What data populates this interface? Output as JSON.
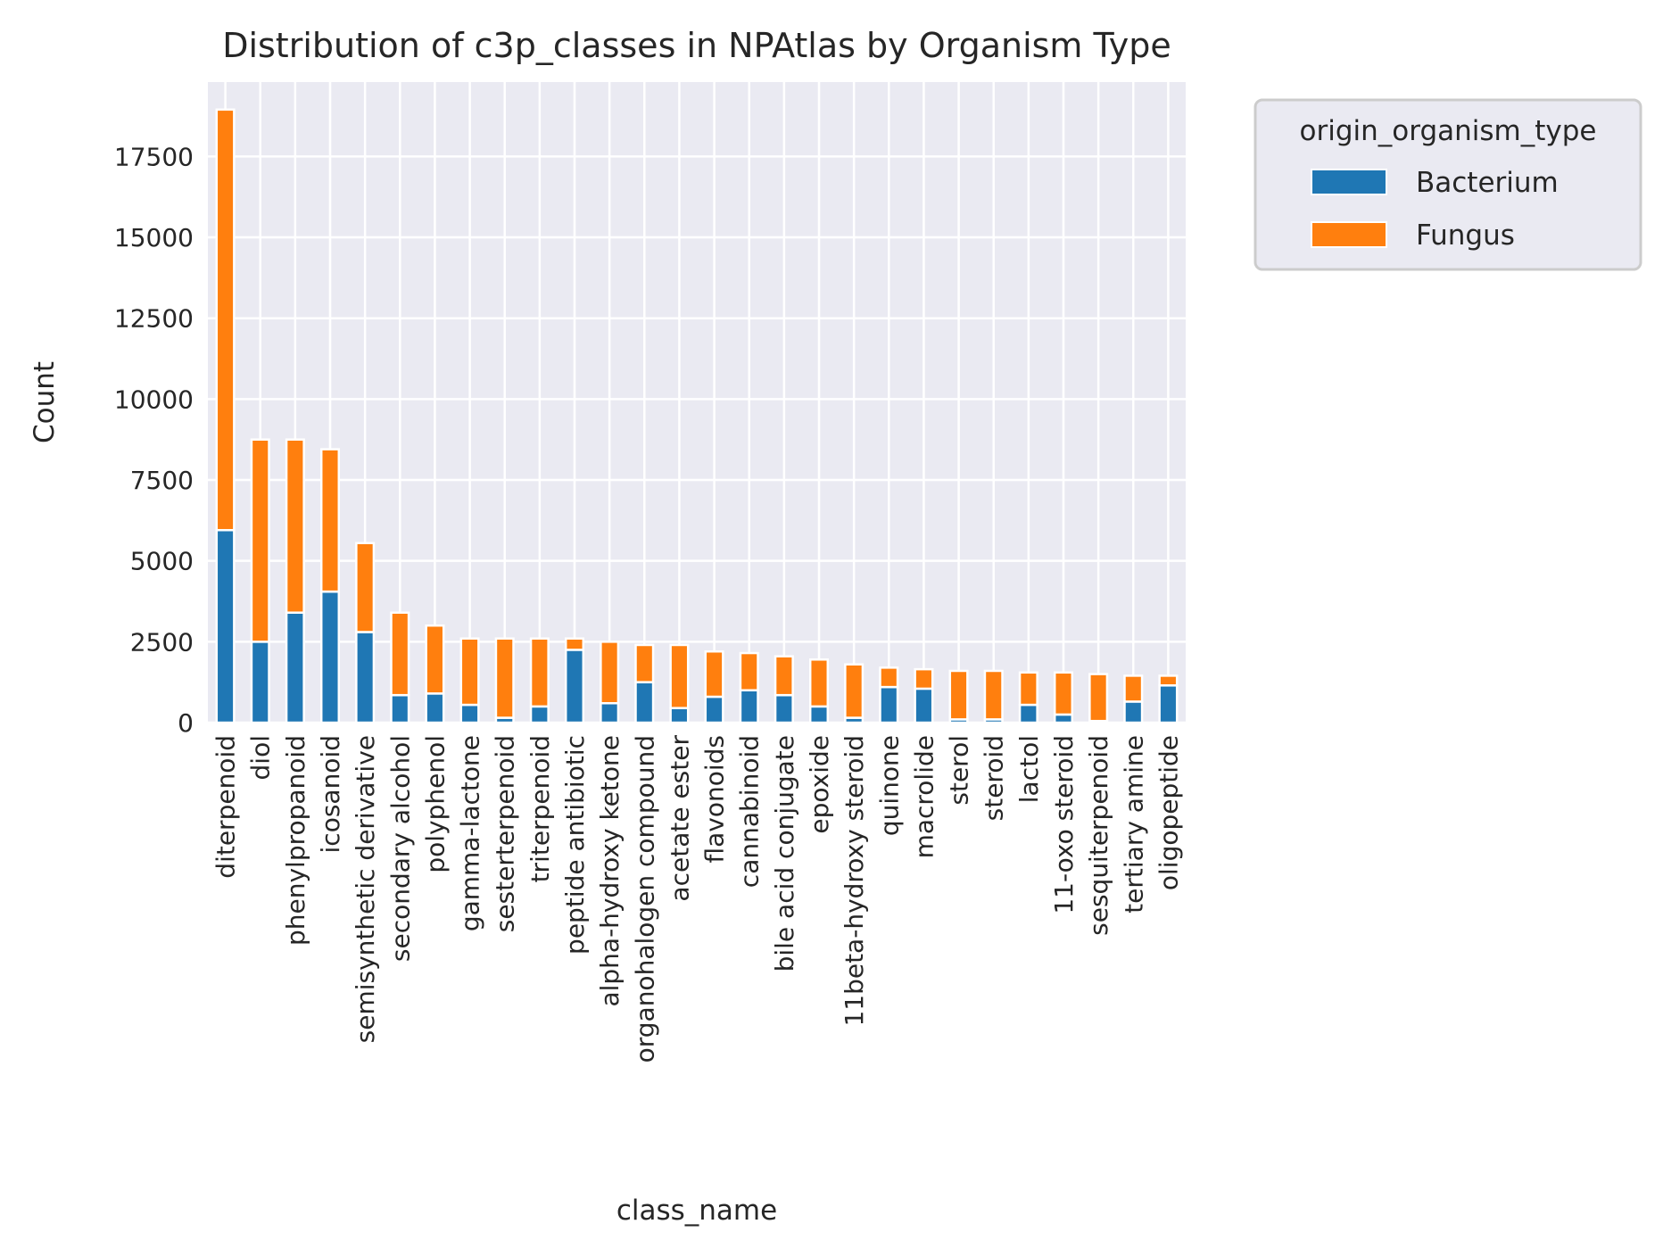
{
  "chart_data": {
    "type": "bar",
    "stacked": true,
    "title": "Distribution of c3p_classes in NPAtlas by Organism Type",
    "xlabel": "class_name",
    "ylabel": "Count",
    "ylim": [
      0,
      19800
    ],
    "yticks": [
      0,
      2500,
      5000,
      7500,
      10000,
      12500,
      15000,
      17500
    ],
    "ytick_labels": [
      "0",
      "2500",
      "5000",
      "7500",
      "10000",
      "12500",
      "15000",
      "17500"
    ],
    "grid": true,
    "legend_position": "outside-top-right",
    "legend_title": "origin_organism_type",
    "categories": [
      "diterpenoid",
      "diol",
      "phenylpropanoid",
      "icosanoid",
      "semisynthetic derivative",
      "secondary alcohol",
      "polyphenol",
      "gamma-lactone",
      "sesterterpenoid",
      "triterpenoid",
      "peptide antibiotic",
      "alpha-hydroxy ketone",
      "organohalogen compound",
      "acetate ester",
      "flavonoids",
      "cannabinoid",
      "bile acid conjugate",
      "epoxide",
      "11beta-hydroxy steroid",
      "quinone",
      "macrolide",
      "sterol",
      "steroid",
      "lactol",
      "11-oxo steroid",
      "sesquiterpenoid",
      "tertiary amine",
      "oligopeptide"
    ],
    "series": [
      {
        "name": "Bacterium",
        "color": "#1f77b4",
        "values": [
          5950,
          2500,
          3400,
          4050,
          2800,
          850,
          900,
          550,
          150,
          500,
          2250,
          600,
          1250,
          450,
          800,
          1000,
          850,
          500,
          150,
          1100,
          1050,
          100,
          100,
          550,
          250,
          50,
          650,
          1150
        ]
      },
      {
        "name": "Fungus",
        "color": "#ff7f0e",
        "values": [
          13000,
          6250,
          5350,
          4400,
          2750,
          2550,
          2100,
          2050,
          2450,
          2100,
          350,
          1900,
          1150,
          1950,
          1400,
          1150,
          1200,
          1450,
          1650,
          600,
          600,
          1500,
          1500,
          1000,
          1300,
          1450,
          800,
          300
        ]
      }
    ],
    "colors": {
      "background": "#eaeaf2",
      "grid": "#ffffff",
      "bar_edge": "#ffffff"
    }
  }
}
